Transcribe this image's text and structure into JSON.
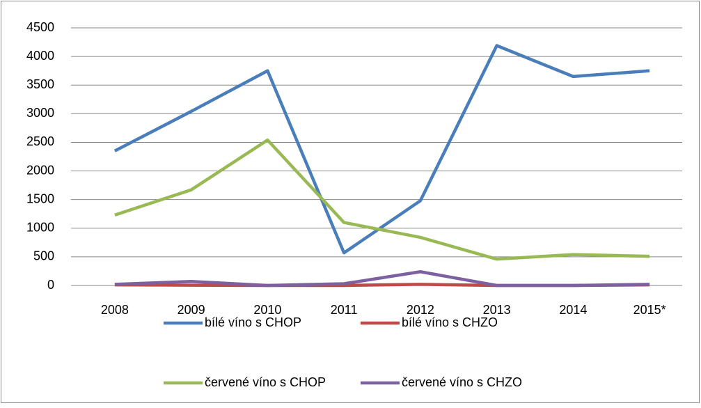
{
  "chart_data": {
    "type": "line",
    "categories": [
      "2008",
      "2009",
      "2010",
      "2011",
      "2012",
      "2013",
      "2014",
      "2015*"
    ],
    "series": [
      {
        "name": "bílé víno s CHOP",
        "color": "#4a7ebb",
        "values": [
          2350,
          3040,
          3750,
          570,
          1480,
          4190,
          3650,
          3750
        ]
      },
      {
        "name": "bílé víno s CHZO",
        "color": "#be4b48",
        "values": [
          10,
          5,
          0,
          0,
          20,
          0,
          0,
          10
        ]
      },
      {
        "name": "červené víno s CHOP",
        "color": "#98b954",
        "values": [
          1230,
          1670,
          2540,
          1100,
          840,
          460,
          540,
          510
        ]
      },
      {
        "name": "červené víno s CHZO",
        "color": "#7d60a0",
        "values": [
          20,
          70,
          0,
          30,
          240,
          0,
          0,
          20
        ]
      }
    ],
    "ylim": [
      0,
      4500
    ],
    "yticks": [
      0,
      500,
      1000,
      1500,
      2000,
      2500,
      3000,
      3500,
      4000,
      4500
    ],
    "grid": true,
    "legend": "bottom"
  }
}
